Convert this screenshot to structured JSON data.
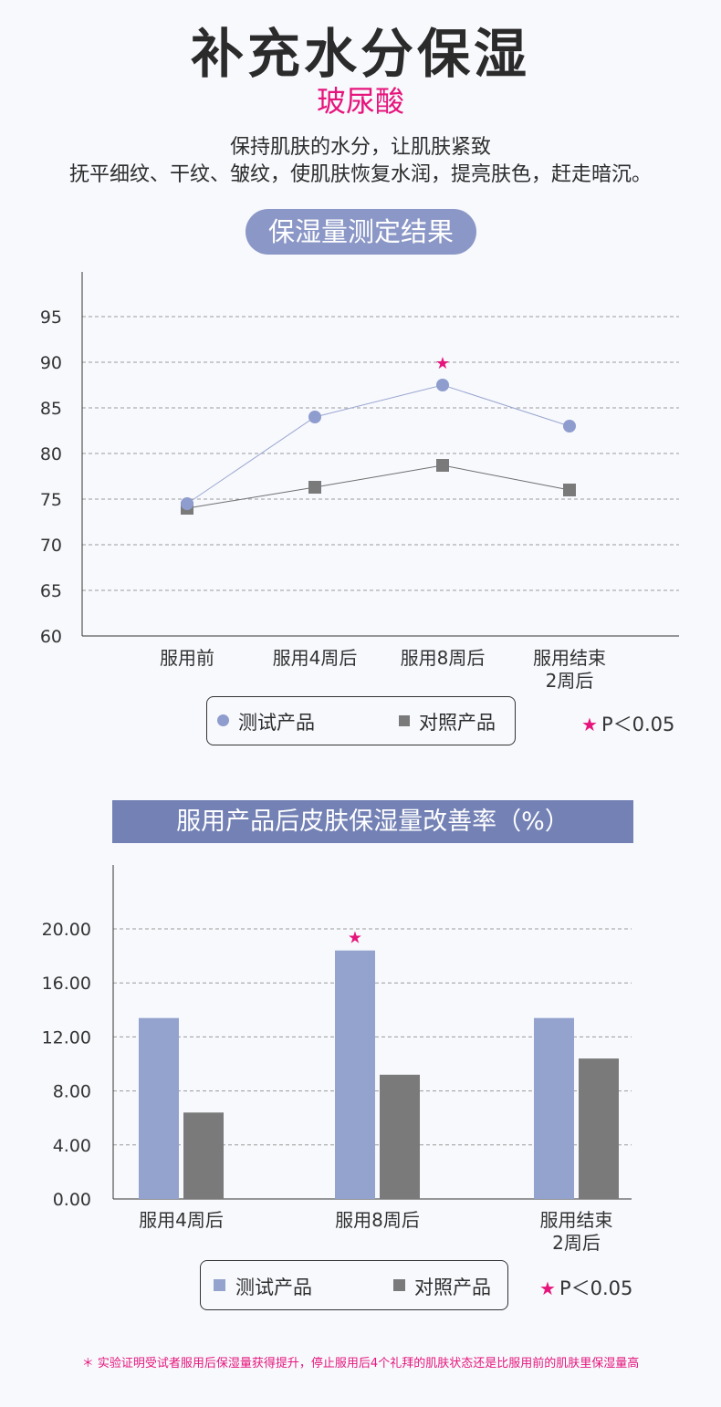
{
  "header": {
    "title": "补充水分保湿",
    "subtitle": "玻尿酸",
    "desc_line1": "保持肌肤的水分，让肌肤紧致",
    "desc_line2": "抚平细纹、干纹、皱纹，使肌肤恢复水润，提亮肤色，赶走暗沉。"
  },
  "section1": {
    "title": "保湿量测定结果"
  },
  "section2": {
    "title": "服用产品后皮肤保湿量改善率（%）"
  },
  "legend": {
    "test": "测试产品",
    "control": "对照产品",
    "pnote": "P＜0.05",
    "star": "★"
  },
  "footnote": "＊ 实验证明受试者服用后保湿量获得提升，停止服用后4个礼拜的肌肤状态还是比服用前的肌肤里保湿量高",
  "colors": {
    "accent": "#e6157c",
    "test": "#94a3cd",
    "test_dot": "#8e9cce",
    "control": "#7a7a7a",
    "pill": "#8b97c6",
    "banner": "#7381b5"
  },
  "chart_data": [
    {
      "type": "line",
      "categories": [
        [
          "服用前"
        ],
        [
          "服用4周后"
        ],
        [
          "服用8周后"
        ],
        [
          "服用结束",
          "2周后"
        ]
      ],
      "ylim": [
        60,
        100
      ],
      "yticks": [
        "60",
        "65",
        "70",
        "75",
        "80",
        "85",
        "90",
        "95"
      ],
      "grid": true,
      "series": [
        {
          "name": "测试产品",
          "values": [
            74.5,
            84,
            87.5,
            83
          ]
        },
        {
          "name": "对照产品",
          "values": [
            74,
            76.3,
            78.7,
            76
          ]
        }
      ],
      "significant_index": 2
    },
    {
      "type": "bar",
      "categories": [
        [
          "服用4周后"
        ],
        [
          "服用8周后"
        ],
        [
          "服用结束",
          "2周后"
        ]
      ],
      "ylim": [
        0,
        20
      ],
      "yticks": [
        "0.00",
        "4.00",
        "8.00",
        "12.00",
        "16.00",
        "20.00"
      ],
      "grid": true,
      "series": [
        {
          "name": "测试产品",
          "values": [
            13.4,
            18.4,
            13.4
          ]
        },
        {
          "name": "对照产品",
          "values": [
            6.4,
            9.2,
            10.4
          ]
        }
      ],
      "significant_index": 1
    }
  ]
}
